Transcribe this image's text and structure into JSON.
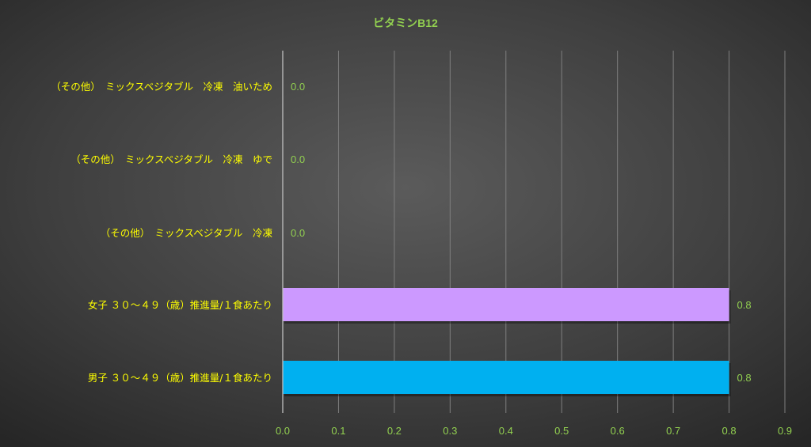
{
  "chart_data": {
    "type": "bar",
    "orientation": "horizontal",
    "title": "ビタミンB12",
    "categories": [
      "（その他）　ミックスベジタブル　冷凍　油いため",
      "（その他）　ミックスベジタブル　冷凍　ゆで",
      "（その他）　ミックスベジタブル　冷凍",
      "女子 ３０～４９（歳）推進量/１食あたり",
      "男子 ３０～４９（歳）推進量/１食あたり"
    ],
    "values": [
      0.0,
      0.0,
      0.0,
      0.8,
      0.8
    ],
    "data_labels": [
      "0.0",
      "0.0",
      "0.0",
      "0.8",
      "0.8"
    ],
    "bar_colors": [
      "#5b9bd5",
      "#5b9bd5",
      "#5b9bd5",
      "#cc99ff",
      "#00b0f0"
    ],
    "xlim": [
      0,
      0.9
    ],
    "xticks": [
      "0.0",
      "0.1",
      "0.2",
      "0.3",
      "0.4",
      "0.5",
      "0.6",
      "0.7",
      "0.8",
      "0.9"
    ],
    "grid": true,
    "colors": {
      "title": "#92d050",
      "category_label": "#ffff00",
      "tick_label": "#92d050",
      "data_label": "#92d050",
      "gridline": "#7f7f7f",
      "axis_line": "#bfbfbf"
    }
  }
}
